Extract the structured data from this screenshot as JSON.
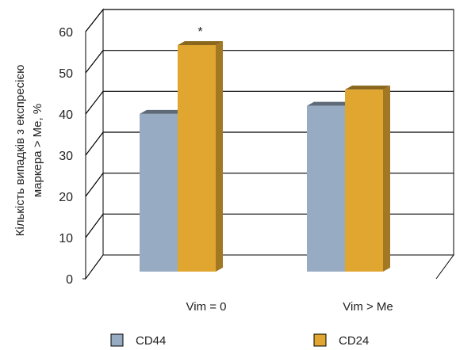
{
  "chart_data": {
    "type": "bar",
    "categories": [
      "Vim = 0",
      "Vim > Me"
    ],
    "series": [
      {
        "name": "CD44",
        "values": [
          39,
          41
        ],
        "color": "#97abc2"
      },
      {
        "name": "CD24",
        "values": [
          56,
          45
        ],
        "color": "#e0a630"
      }
    ],
    "title": "",
    "xlabel": "",
    "ylabel_lines": [
      "Кількість випадків з експресією",
      "маркера > Me, %"
    ],
    "ylim": [
      0,
      60
    ],
    "yticks": [
      "0",
      "10",
      "20",
      "30",
      "40",
      "50",
      "60"
    ],
    "grid": true,
    "legend_position": "bottom",
    "annotations": [
      {
        "category_index": 0,
        "series_index": 1,
        "text": "*"
      }
    ]
  }
}
